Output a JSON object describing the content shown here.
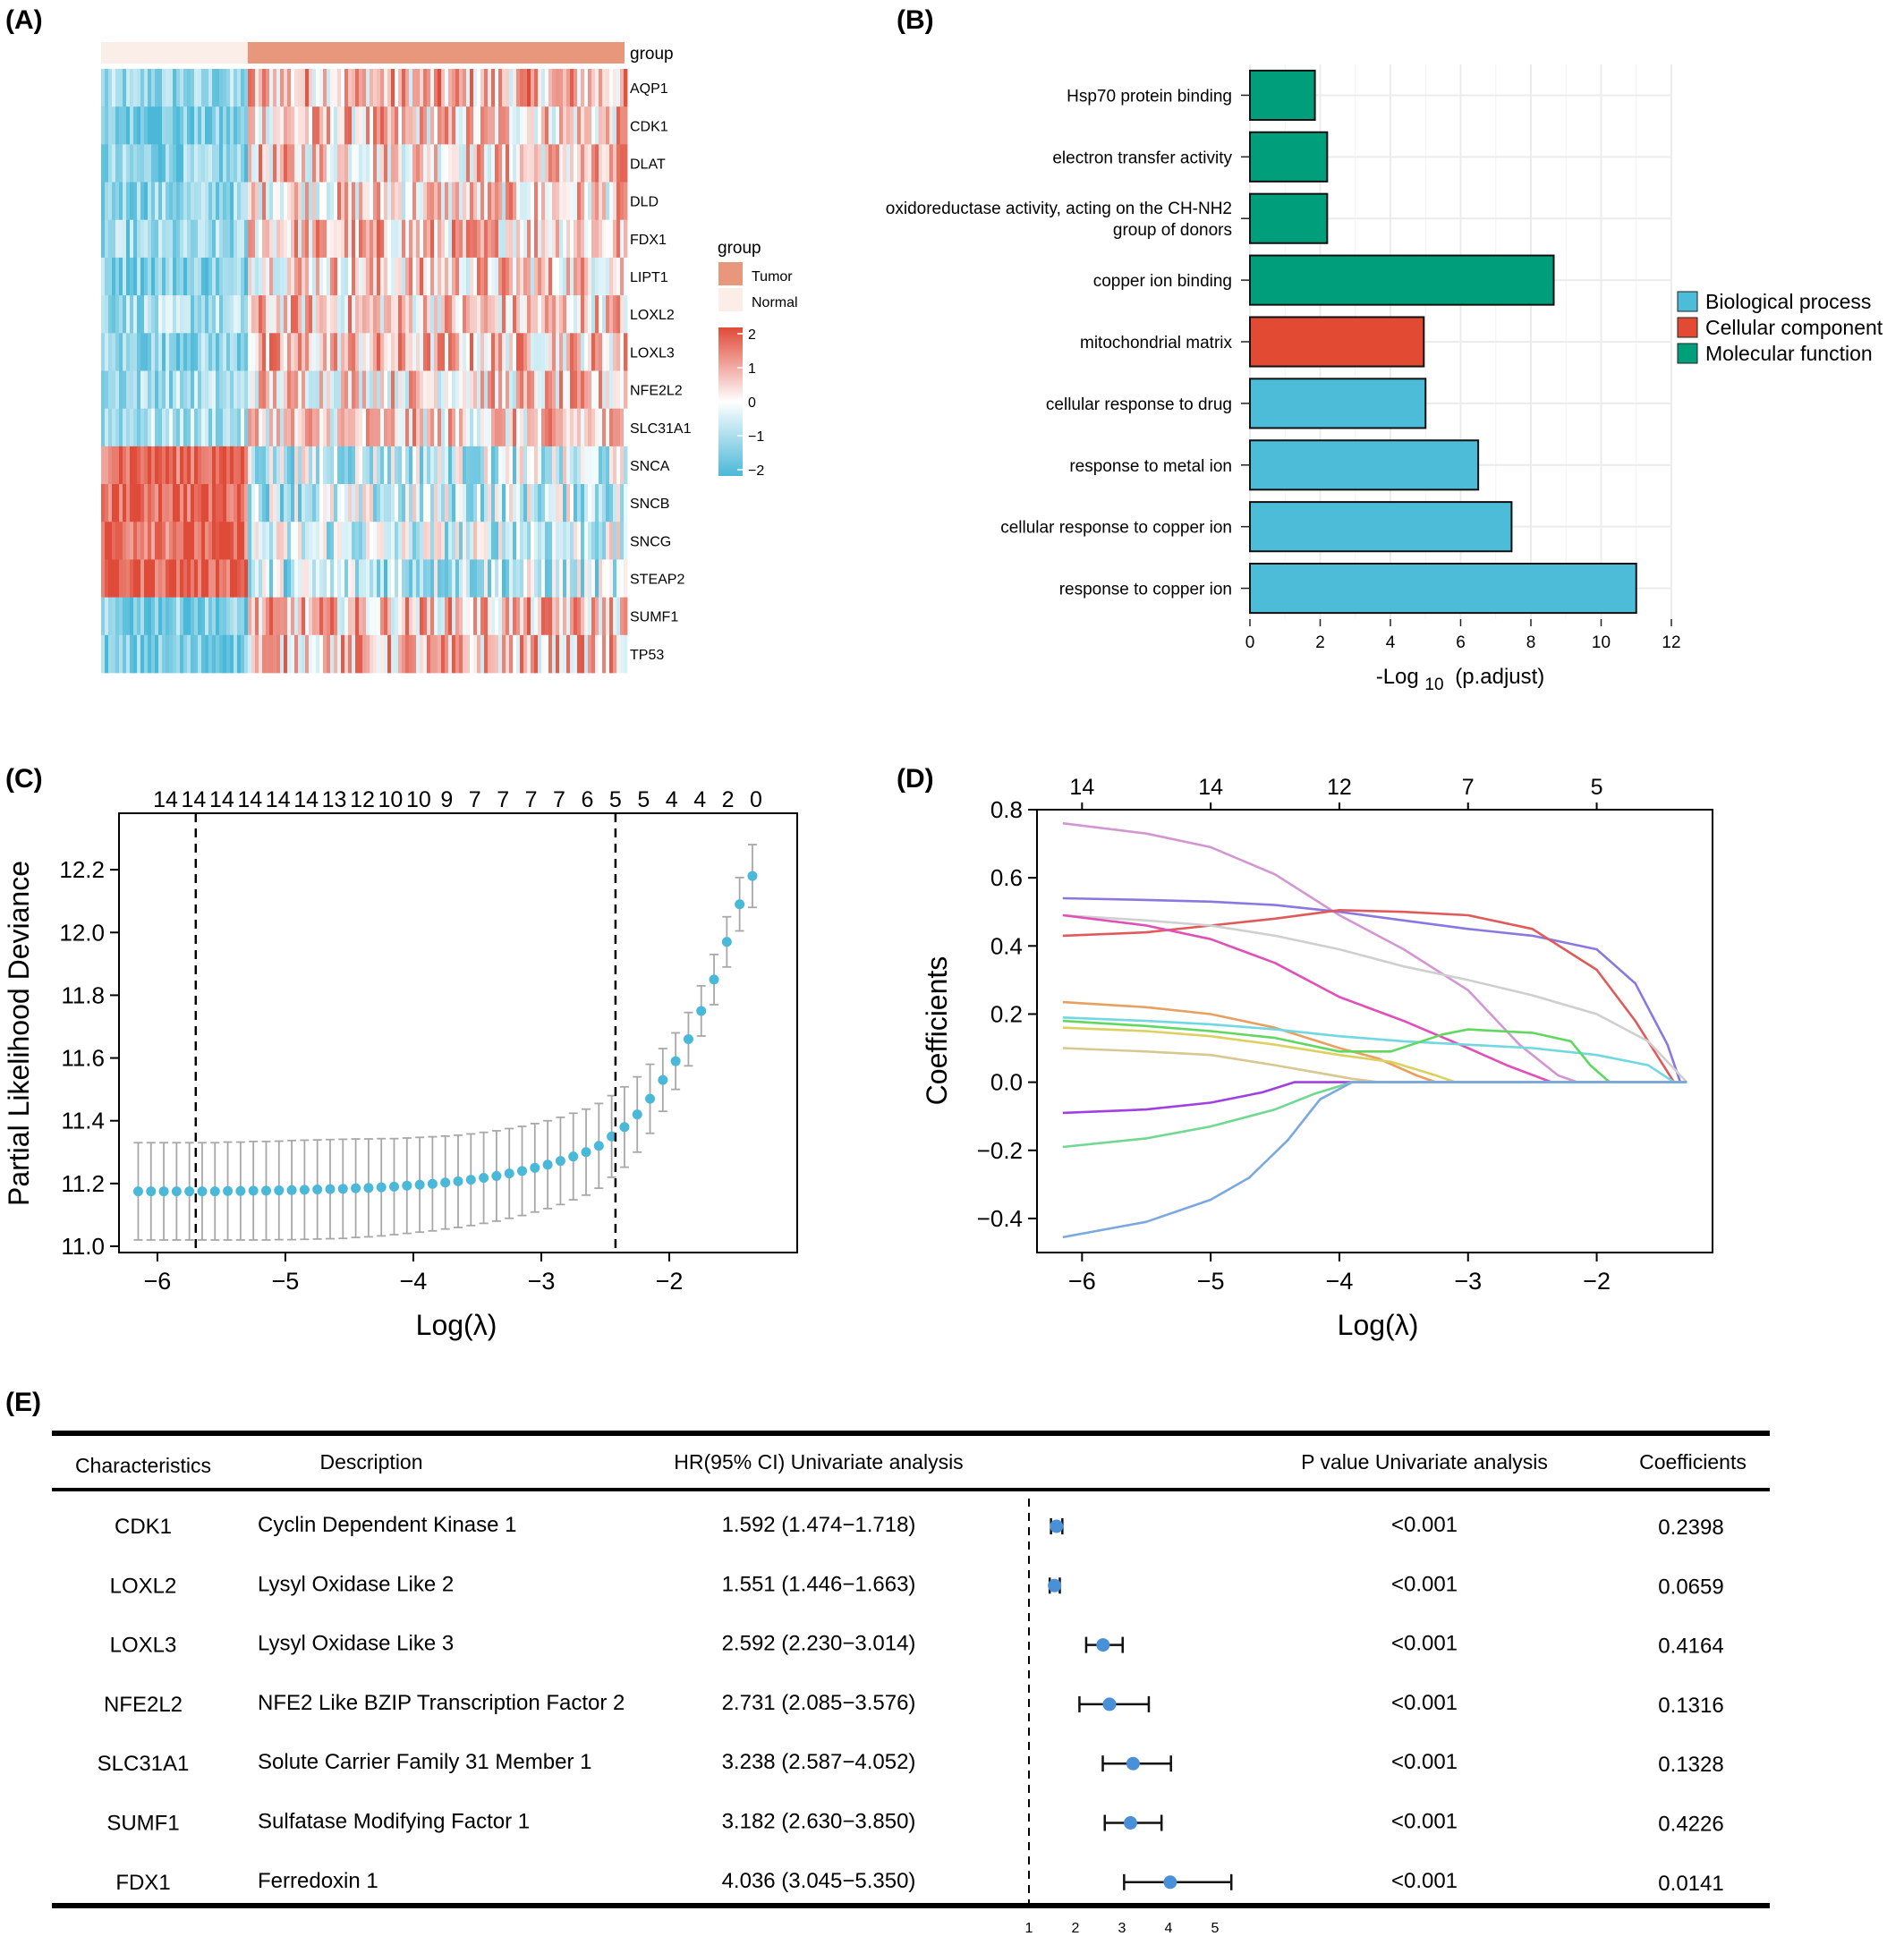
{
  "panel_labels": {
    "a": "(A)",
    "b": "(B)",
    "c": "(C)",
    "d": "(D)",
    "e": "(E)"
  },
  "colors": {
    "tumor": "#e8967c",
    "normal": "#fbeee8",
    "high": "#e04a38",
    "mid": "#ffffff",
    "low": "#4ab8d8",
    "bp": "#4cbcd8",
    "cc": "#e34a33",
    "mf": "#009e7a",
    "dot": "#4ab8d8",
    "forest": "#4a90d9"
  },
  "chart_data": [
    {
      "type": "heatmap",
      "panel": "A",
      "annotation_label": "group",
      "genes": [
        "AQP1",
        "CDK1",
        "DLAT",
        "DLD",
        "FDX1",
        "LIPT1",
        "LOXL2",
        "LOXL3",
        "NFE2L2",
        "SLC31A1",
        "SNCA",
        "SNCB",
        "SNCG",
        "STEAP2",
        "SUMF1",
        "TP53"
      ],
      "groups": [
        "Normal",
        "Tumor"
      ],
      "group_sample_fraction": [
        0.28,
        0.72
      ],
      "mean_expression": {
        "Normal": [
          -1.2,
          -1.5,
          -1.3,
          -1.2,
          -1.2,
          -1.3,
          -1.0,
          -1.2,
          -1.0,
          -0.9,
          1.8,
          1.8,
          1.7,
          1.9,
          -1.4,
          -1.5
        ],
        "Tumor": [
          0.7,
          0.5,
          0.5,
          0.4,
          0.6,
          0.5,
          0.5,
          0.6,
          0.4,
          0.4,
          -0.6,
          -0.6,
          -0.5,
          -0.7,
          0.6,
          0.6
        ]
      },
      "legend": {
        "title": "group",
        "entries": [
          "Tumor",
          "Normal"
        ],
        "scale_ticks": [
          "2",
          "1",
          "0",
          "−1",
          "−2"
        ],
        "scale_range": [
          -2,
          2
        ]
      }
    },
    {
      "type": "bar",
      "panel": "B",
      "orientation": "horizontal",
      "categories": [
        "Hsp70 protein binding",
        "electron transfer activity",
        "oxidoreductase activity, acting on the CH-NH2 group of donors",
        "copper ion binding",
        "mitochondrial matrix",
        "cellular response to drug",
        "response to metal ion",
        "cellular response to copper ion",
        "response to copper ion"
      ],
      "category_lines": [
        [
          "Hsp70 protein binding"
        ],
        [
          "electron transfer activity"
        ],
        [
          "oxidoreductase activity, acting on the CH-NH2",
          "group of donors"
        ],
        [
          "copper ion binding"
        ],
        [
          "mitochondrial matrix"
        ],
        [
          "cellular response to drug"
        ],
        [
          "response to metal ion"
        ],
        [
          "cellular response to copper ion"
        ],
        [
          "response to copper ion"
        ]
      ],
      "values": [
        1.85,
        2.2,
        2.2,
        8.65,
        4.95,
        5.0,
        6.5,
        7.45,
        11.0
      ],
      "ontology": [
        "Molecular function",
        "Molecular function",
        "Molecular function",
        "Molecular function",
        "Cellular component",
        "Biological process",
        "Biological process",
        "Biological process",
        "Biological process"
      ],
      "xlabel": "-Log",
      "xlabel_sub": "10",
      "xlabel_tail": "(p.adjust)",
      "xlim": [
        0,
        12
      ],
      "xticks": [
        "0",
        "2",
        "4",
        "6",
        "8",
        "10",
        "12"
      ],
      "legend": [
        "Biological process",
        "Cellular component",
        "Molecular function"
      ]
    },
    {
      "type": "scatter",
      "panel": "C",
      "xlabel": "Log(λ)",
      "ylabel": "Partial Likelihood Deviance",
      "xlim": [
        -6.3,
        -1.0
      ],
      "ylim": [
        10.98,
        12.38
      ],
      "xticks": [
        "−6",
        "−5",
        "−4",
        "−3",
        "−2"
      ],
      "yticks": [
        "11.0",
        "11.2",
        "11.4",
        "11.6",
        "11.8",
        "12.0",
        "12.2"
      ],
      "top_axis_counts": [
        "14",
        "14",
        "14",
        "14",
        "14",
        "14",
        "13",
        "12",
        "10",
        "10",
        "9",
        "7",
        "7",
        "7",
        "7",
        "6",
        "5",
        "5",
        "4",
        "4",
        "2",
        "0"
      ],
      "vlines": [
        -5.7,
        -2.42
      ],
      "x_start": -6.15,
      "x_step": 0.1,
      "y": [
        11.175,
        11.175,
        11.175,
        11.175,
        11.175,
        11.175,
        11.175,
        11.176,
        11.176,
        11.177,
        11.177,
        11.178,
        11.179,
        11.18,
        11.181,
        11.182,
        11.183,
        11.185,
        11.186,
        11.188,
        11.19,
        11.193,
        11.196,
        11.199,
        11.203,
        11.207,
        11.212,
        11.218,
        11.224,
        11.232,
        11.24,
        11.25,
        11.26,
        11.272,
        11.286,
        11.3,
        11.32,
        11.35,
        11.38,
        11.42,
        11.47,
        11.53,
        11.59,
        11.66,
        11.75,
        11.85,
        11.97,
        12.09,
        12.18
      ],
      "err": [
        0.155,
        0.155,
        0.155,
        0.155,
        0.155,
        0.155,
        0.155,
        0.156,
        0.156,
        0.157,
        0.157,
        0.157,
        0.158,
        0.158,
        0.158,
        0.158,
        0.158,
        0.157,
        0.156,
        0.155,
        0.153,
        0.152,
        0.151,
        0.15,
        0.148,
        0.147,
        0.146,
        0.145,
        0.144,
        0.143,
        0.142,
        0.141,
        0.14,
        0.139,
        0.138,
        0.137,
        0.135,
        0.13,
        0.128,
        0.12,
        0.11,
        0.1,
        0.09,
        0.085,
        0.08,
        0.08,
        0.08,
        0.085,
        0.1
      ]
    },
    {
      "type": "line",
      "panel": "D",
      "xlabel": "Log(λ)",
      "ylabel": "Coefficients",
      "xlim": [
        -6.35,
        -1.1
      ],
      "ylim": [
        -0.5,
        0.8
      ],
      "xticks": [
        "−6",
        "−5",
        "−4",
        "−3",
        "−2"
      ],
      "yticks": [
        "−0.4",
        "−0.2",
        "0.0",
        "0.2",
        "0.4",
        "0.6",
        "0.8"
      ],
      "top_axis_counts": [
        "14",
        "14",
        "12",
        "7",
        "5"
      ],
      "top_axis_x": [
        -6.0,
        -5.0,
        -4.0,
        -3.0,
        -2.0
      ],
      "series": [
        {
          "color": "#d396d3",
          "x": [
            -6.15,
            -5.5,
            -5,
            -4.5,
            -4,
            -3.5,
            -3,
            -2.6,
            -2.3,
            -2.15
          ],
          "y": [
            0.76,
            0.73,
            0.69,
            0.61,
            0.49,
            0.39,
            0.27,
            0.11,
            0.02,
            0
          ]
        },
        {
          "color": "#8a78e0",
          "x": [
            -6.15,
            -5.5,
            -5,
            -4.5,
            -4,
            -3.5,
            -3,
            -2.5,
            -2,
            -1.7,
            -1.45,
            -1.35
          ],
          "y": [
            0.54,
            0.535,
            0.53,
            0.52,
            0.5,
            0.475,
            0.45,
            0.43,
            0.39,
            0.29,
            0.11,
            0
          ]
        },
        {
          "color": "#e05a5a",
          "x": [
            -6.15,
            -5.5,
            -5,
            -4.5,
            -4,
            -3.5,
            -3,
            -2.5,
            -2,
            -1.7,
            -1.5,
            -1.4
          ],
          "y": [
            0.43,
            0.44,
            0.46,
            0.48,
            0.505,
            0.5,
            0.49,
            0.45,
            0.33,
            0.18,
            0.06,
            0
          ]
        },
        {
          "color": "#cfcfcf",
          "x": [
            -6.15,
            -5.5,
            -5,
            -4.5,
            -4,
            -3.5,
            -3,
            -2.5,
            -2,
            -1.6,
            -1.3
          ],
          "y": [
            0.49,
            0.475,
            0.46,
            0.43,
            0.39,
            0.34,
            0.3,
            0.255,
            0.2,
            0.12,
            0
          ]
        },
        {
          "color": "#e050b8",
          "x": [
            -6.15,
            -5.5,
            -5,
            -4.5,
            -4,
            -3.5,
            -3,
            -2.7,
            -2.35
          ],
          "y": [
            0.49,
            0.46,
            0.42,
            0.35,
            0.25,
            0.18,
            0.1,
            0.05,
            0
          ]
        },
        {
          "color": "#e8a060",
          "x": [
            -6.15,
            -5.5,
            -5,
            -4.5,
            -4,
            -3.7,
            -3.4,
            -3.25
          ],
          "y": [
            0.235,
            0.22,
            0.2,
            0.16,
            0.1,
            0.07,
            0.02,
            0
          ]
        },
        {
          "color": "#70d8e0",
          "x": [
            -6.15,
            -5.5,
            -5,
            -4.5,
            -4,
            -3.5,
            -3,
            -2.5,
            -2,
            -1.6,
            -1.4
          ],
          "y": [
            0.19,
            0.18,
            0.17,
            0.155,
            0.135,
            0.12,
            0.11,
            0.1,
            0.08,
            0.05,
            0
          ]
        },
        {
          "color": "#60d860",
          "x": [
            -6.15,
            -5.5,
            -5,
            -4.5,
            -4,
            -3.6,
            -3.2,
            -3,
            -2.5,
            -2.2,
            -2.05,
            -1.9
          ],
          "y": [
            0.18,
            0.165,
            0.15,
            0.13,
            0.09,
            0.09,
            0.14,
            0.155,
            0.145,
            0.12,
            0.05,
            0
          ]
        },
        {
          "color": "#dcd060",
          "x": [
            -6.15,
            -5.5,
            -5,
            -4.5,
            -4,
            -3.6,
            -3.25,
            -3.1
          ],
          "y": [
            0.16,
            0.15,
            0.135,
            0.11,
            0.08,
            0.06,
            0.02,
            0
          ]
        },
        {
          "color": "#d8c890",
          "x": [
            -6.15,
            -5.5,
            -5,
            -4.5,
            -4.2,
            -3.9,
            -3.7
          ],
          "y": [
            0.1,
            0.09,
            0.08,
            0.05,
            0.03,
            0.01,
            0
          ]
        },
        {
          "color": "#a040e0",
          "x": [
            -6.15,
            -5.5,
            -5,
            -4.6,
            -4.35,
            -4.2
          ],
          "y": [
            -0.09,
            -0.08,
            -0.06,
            -0.03,
            0,
            0
          ]
        },
        {
          "color": "#70d890",
          "x": [
            -6.15,
            -5.5,
            -5,
            -4.5,
            -4.2,
            -3.9
          ],
          "y": [
            -0.19,
            -0.165,
            -0.13,
            -0.08,
            -0.035,
            0
          ]
        },
        {
          "color": "#7aa8e0",
          "x": [
            -6.15,
            -5.5,
            -5,
            -4.7,
            -4.4,
            -4.15,
            -3.9
          ],
          "y": [
            -0.455,
            -0.41,
            -0.345,
            -0.28,
            -0.17,
            -0.05,
            0
          ]
        }
      ]
    },
    {
      "type": "table",
      "panel": "E",
      "headers": [
        "Characteristics",
        "Description",
        "HR(95% CI) Univariate analysis",
        "P value Univariate analysis",
        "Coefficients"
      ],
      "rows": [
        {
          "gene": "CDK1",
          "desc": "Cyclin Dependent Kinase 1",
          "hr_text": "1.592 (1.474−1.718)",
          "p": "<0.001",
          "coef": "0.2398",
          "hr": 1.592,
          "lo": 1.474,
          "hi": 1.718
        },
        {
          "gene": "LOXL2",
          "desc": "Lysyl Oxidase Like 2",
          "hr_text": "1.551 (1.446−1.663)",
          "p": "<0.001",
          "coef": "0.0659",
          "hr": 1.551,
          "lo": 1.446,
          "hi": 1.663
        },
        {
          "gene": "LOXL3",
          "desc": "Lysyl Oxidase Like 3",
          "hr_text": "2.592 (2.230−3.014)",
          "p": "<0.001",
          "coef": "0.4164",
          "hr": 2.592,
          "lo": 2.23,
          "hi": 3.014
        },
        {
          "gene": "NFE2L2",
          "desc": "NFE2 Like BZIP Transcription Factor 2",
          "hr_text": "2.731 (2.085−3.576)",
          "p": "<0.001",
          "coef": "0.1316",
          "hr": 2.731,
          "lo": 2.085,
          "hi": 3.576
        },
        {
          "gene": "SLC31A1",
          "desc": "Solute Carrier Family 31 Member 1",
          "hr_text": "3.238 (2.587−4.052)",
          "p": "<0.001",
          "coef": "0.1328",
          "hr": 3.238,
          "lo": 2.587,
          "hi": 4.052
        },
        {
          "gene": "SUMF1",
          "desc": "Sulfatase Modifying Factor 1",
          "hr_text": "3.182 (2.630−3.850)",
          "p": "<0.001",
          "coef": "0.4226",
          "hr": 3.182,
          "lo": 2.63,
          "hi": 3.85
        },
        {
          "gene": "FDX1",
          "desc": "Ferredoxin 1",
          "hr_text": "4.036 (3.045−5.350)",
          "p": "<0.001",
          "coef": "0.0141",
          "hr": 4.036,
          "lo": 3.045,
          "hi": 5.35
        }
      ],
      "forest_xticks": [
        "1",
        "2",
        "3",
        "4",
        "5"
      ],
      "forest_ref": 1
    }
  ]
}
